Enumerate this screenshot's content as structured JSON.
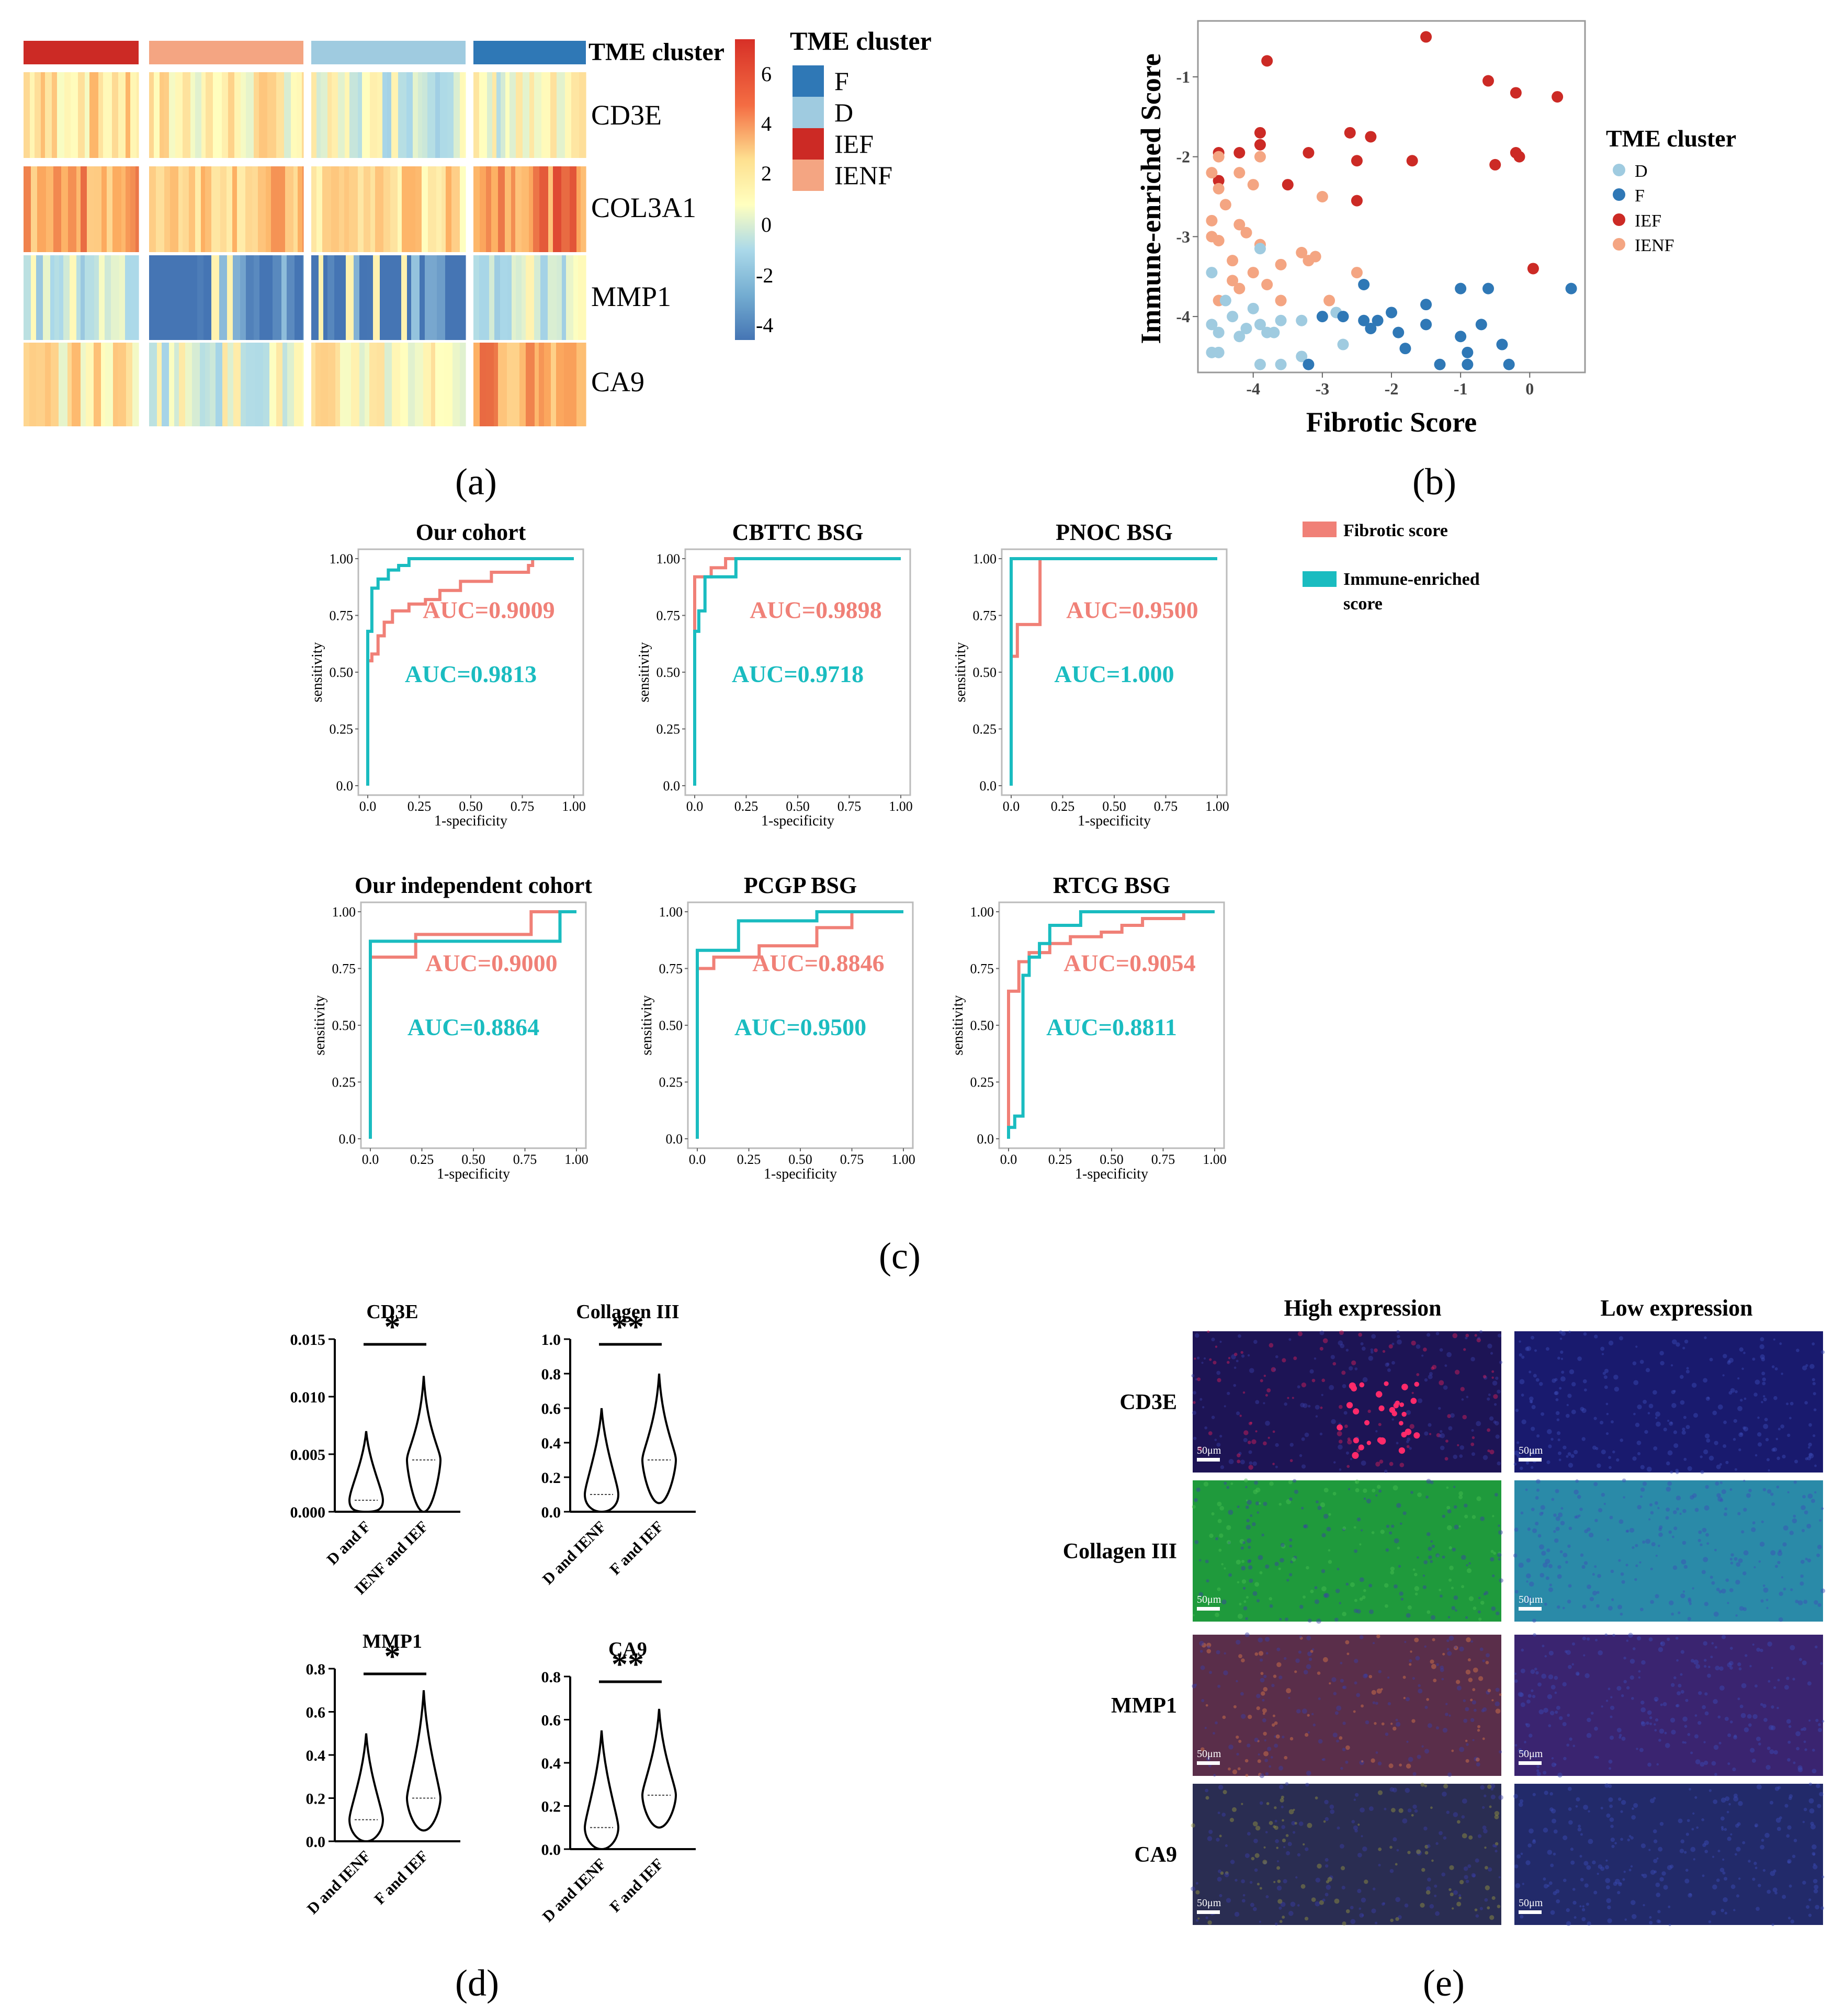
{
  "panel_labels": {
    "a": "(a)",
    "b": "(b)",
    "c": "(c)",
    "d": "(d)",
    "e": "(e)"
  },
  "colors": {
    "F": "#2f78b6",
    "D": "#9fcbe0",
    "IEF": "#cc2a25",
    "IENF": "#f4a582",
    "fibrotic": "#f08077",
    "immune": "#1abcc0",
    "heat_neg": "#4575b4",
    "heat_mid": "#ffffbf",
    "heat_pos": "#d73027"
  },
  "heatmap": {
    "annotation_title": "TME cluster",
    "genes": [
      "CD3E",
      "COL3A1",
      "MMP1",
      "CA9"
    ],
    "groups": [
      "IEF",
      "IENF",
      "D",
      "F"
    ],
    "colorbar_ticks": [
      6,
      4,
      2,
      0,
      -2,
      -4
    ],
    "legend_title": "TME cluster",
    "legend_items": [
      "F",
      "D",
      "IEF",
      "IENF"
    ]
  },
  "chart_data": [
    {
      "id": "scatter-b",
      "type": "scatter",
      "xlabel": "Fibrotic Score",
      "ylabel": "Immune-enriched Score",
      "xlim": [
        -4.8,
        0.8
      ],
      "ylim": [
        -4.7,
        -0.3
      ],
      "xticks": [
        -4,
        -3,
        -2,
        -1,
        0
      ],
      "yticks": [
        -1,
        -2,
        -3,
        -4
      ],
      "legend_title": "TME cluster",
      "legend": [
        "D",
        "F",
        "IEF",
        "IENF"
      ],
      "series": [
        {
          "name": "IEF",
          "points": [
            [
              -1.5,
              -0.5
            ],
            [
              -3.8,
              -0.8
            ],
            [
              -0.6,
              -1.05
            ],
            [
              -0.2,
              -1.2
            ],
            [
              0.4,
              -1.25
            ],
            [
              -3.9,
              -1.7
            ],
            [
              -2.6,
              -1.7
            ],
            [
              -2.3,
              -1.75
            ],
            [
              -3.9,
              -1.85
            ],
            [
              -4.5,
              -1.95
            ],
            [
              -4.2,
              -1.95
            ],
            [
              -3.2,
              -1.95
            ],
            [
              -0.2,
              -1.95
            ],
            [
              -0.15,
              -2.0
            ],
            [
              -2.5,
              -2.05
            ],
            [
              -1.7,
              -2.05
            ],
            [
              -0.5,
              -2.1
            ],
            [
              -3.5,
              -2.35
            ],
            [
              -4.5,
              -2.3
            ],
            [
              -2.5,
              -2.55
            ],
            [
              0.05,
              -3.4
            ]
          ]
        },
        {
          "name": "IENF",
          "points": [
            [
              -4.5,
              -2.0
            ],
            [
              -4.6,
              -2.2
            ],
            [
              -4.2,
              -2.2
            ],
            [
              -4.5,
              -2.4
            ],
            [
              -3.9,
              -2.0
            ],
            [
              -4.0,
              -2.35
            ],
            [
              -3.0,
              -2.5
            ],
            [
              -4.4,
              -2.6
            ],
            [
              -4.6,
              -2.8
            ],
            [
              -4.2,
              -2.85
            ],
            [
              -4.1,
              -2.95
            ],
            [
              -4.6,
              -3.0
            ],
            [
              -4.5,
              -3.05
            ],
            [
              -3.9,
              -3.1
            ],
            [
              -3.3,
              -3.2
            ],
            [
              -3.1,
              -3.25
            ],
            [
              -3.2,
              -3.3
            ],
            [
              -3.6,
              -3.35
            ],
            [
              -4.3,
              -3.3
            ],
            [
              -4.0,
              -3.45
            ],
            [
              -3.8,
              -3.6
            ],
            [
              -2.5,
              -3.45
            ],
            [
              -4.2,
              -3.65
            ],
            [
              -2.9,
              -3.8
            ],
            [
              -4.5,
              -3.8
            ],
            [
              -3.6,
              -3.8
            ],
            [
              -4.3,
              -3.55
            ]
          ]
        },
        {
          "name": "D",
          "points": [
            [
              -3.9,
              -3.15
            ],
            [
              -4.6,
              -3.45
            ],
            [
              -4.4,
              -3.8
            ],
            [
              -4.0,
              -3.9
            ],
            [
              -4.3,
              -4.0
            ],
            [
              -3.9,
              -4.1
            ],
            [
              -3.6,
              -4.05
            ],
            [
              -4.6,
              -4.1
            ],
            [
              -4.1,
              -4.15
            ],
            [
              -4.5,
              -4.2
            ],
            [
              -3.8,
              -4.2
            ],
            [
              -4.2,
              -4.25
            ],
            [
              -3.3,
              -4.05
            ],
            [
              -2.8,
              -3.95
            ],
            [
              -2.7,
              -4.35
            ],
            [
              -4.5,
              -4.45
            ],
            [
              -4.6,
              -4.45
            ],
            [
              -3.3,
              -4.5
            ],
            [
              -3.9,
              -4.6
            ],
            [
              -3.6,
              -4.6
            ],
            [
              -3.7,
              -4.2
            ]
          ]
        },
        {
          "name": "F",
          "points": [
            [
              0.6,
              -3.65
            ],
            [
              -0.6,
              -3.65
            ],
            [
              -1.0,
              -3.65
            ],
            [
              -2.4,
              -3.6
            ],
            [
              -1.5,
              -3.85
            ],
            [
              -2.0,
              -3.95
            ],
            [
              -3.0,
              -4.0
            ],
            [
              -2.7,
              -4.0
            ],
            [
              -2.4,
              -4.05
            ],
            [
              -2.2,
              -4.05
            ],
            [
              -1.5,
              -4.1
            ],
            [
              -0.7,
              -4.1
            ],
            [
              -2.3,
              -4.15
            ],
            [
              -1.9,
              -4.2
            ],
            [
              -1.0,
              -4.25
            ],
            [
              -0.4,
              -4.35
            ],
            [
              -1.8,
              -4.4
            ],
            [
              -0.9,
              -4.45
            ],
            [
              -1.3,
              -4.6
            ],
            [
              -0.9,
              -4.6
            ],
            [
              -0.3,
              -4.6
            ],
            [
              -3.2,
              -4.6
            ]
          ]
        }
      ]
    },
    {
      "id": "roc-our-cohort",
      "type": "line",
      "title": "Our cohort",
      "xlabel": "1-specificity",
      "ylabel": "sensitivity",
      "xlim": [
        0,
        1
      ],
      "ylim": [
        0,
        1
      ],
      "ticks": [
        "0.0",
        "0.25",
        "0.50",
        "0.75",
        "1.00"
      ],
      "series": [
        {
          "name": "Fibrotic score",
          "auc_label": "AUC=0.9009",
          "x": [
            0,
            0,
            0.02,
            0.02,
            0.05,
            0.05,
            0.08,
            0.08,
            0.12,
            0.12,
            0.2,
            0.2,
            0.28,
            0.28,
            0.35,
            0.35,
            0.45,
            0.45,
            0.6,
            0.6,
            0.78,
            0.78,
            0.8,
            0.8,
            1
          ],
          "y": [
            0,
            0.55,
            0.55,
            0.58,
            0.58,
            0.66,
            0.66,
            0.72,
            0.72,
            0.77,
            0.77,
            0.8,
            0.8,
            0.82,
            0.82,
            0.86,
            0.86,
            0.9,
            0.9,
            0.94,
            0.94,
            0.97,
            0.97,
            1,
            1
          ]
        },
        {
          "name": "Immune-enriched score",
          "auc_label": "AUC=0.9813",
          "x": [
            0,
            0,
            0.02,
            0.02,
            0.05,
            0.05,
            0.1,
            0.1,
            0.15,
            0.15,
            0.2,
            0.2,
            1
          ],
          "y": [
            0,
            0.68,
            0.68,
            0.87,
            0.87,
            0.91,
            0.91,
            0.95,
            0.95,
            0.97,
            0.97,
            1,
            1
          ]
        }
      ]
    },
    {
      "id": "roc-cbttc",
      "type": "line",
      "title": "CBTTC  BSG",
      "xlabel": "1-specificity",
      "ylabel": "sensitivity",
      "xlim": [
        0,
        1
      ],
      "ylim": [
        0,
        1
      ],
      "ticks": [
        "0.0",
        "0.25",
        "0.50",
        "0.75",
        "1.00"
      ],
      "series": [
        {
          "name": "Fibrotic score",
          "auc_label": "AUC=0.9898",
          "x": [
            0,
            0,
            0.08,
            0.08,
            0.15,
            0.15,
            1
          ],
          "y": [
            0,
            0.92,
            0.92,
            0.96,
            0.96,
            1,
            1
          ]
        },
        {
          "name": "Immune-enriched score",
          "auc_label": "AUC=0.9718",
          "x": [
            0,
            0,
            0.02,
            0.02,
            0.05,
            0.05,
            0.2,
            0.2,
            1
          ],
          "y": [
            0,
            0.68,
            0.68,
            0.77,
            0.77,
            0.92,
            0.92,
            1,
            1
          ]
        }
      ]
    },
    {
      "id": "roc-pnoc",
      "type": "line",
      "title": "PNOC  BSG",
      "xlabel": "1-specificity",
      "ylabel": "sensitivity",
      "xlim": [
        0,
        1
      ],
      "ylim": [
        0,
        1
      ],
      "ticks": [
        "0.0",
        "0.25",
        "0.50",
        "0.75",
        "1.00"
      ],
      "series": [
        {
          "name": "Fibrotic score",
          "auc_label": "AUC=0.9500",
          "x": [
            0,
            0,
            0.03,
            0.03,
            0.08,
            0.08,
            0.14,
            0.14,
            1
          ],
          "y": [
            0,
            0.57,
            0.57,
            0.71,
            0.71,
            0.71,
            0.71,
            1,
            1
          ]
        },
        {
          "name": "Immune-enriched score",
          "auc_label": "AUC=1.000",
          "x": [
            0,
            0,
            1
          ],
          "y": [
            0,
            1,
            1
          ]
        }
      ]
    },
    {
      "id": "roc-independent",
      "type": "line",
      "title": "Our independent cohort",
      "xlabel": "1-specificity",
      "ylabel": "sensitivity",
      "xlim": [
        0,
        1
      ],
      "ylim": [
        0,
        1
      ],
      "ticks": [
        "0.0",
        "0.25",
        "0.50",
        "0.75",
        "1.00"
      ],
      "series": [
        {
          "name": "Fibrotic score",
          "auc_label": "AUC=0.9000",
          "x": [
            0,
            0,
            0.22,
            0.22,
            0.78,
            0.78,
            0.95,
            0.95,
            1
          ],
          "y": [
            0,
            0.8,
            0.8,
            0.9,
            0.9,
            1,
            1,
            1,
            1
          ]
        },
        {
          "name": "Immune-enriched score",
          "auc_label": "AUC=0.8864",
          "x": [
            0,
            0,
            0.92,
            0.92,
            1
          ],
          "y": [
            0,
            0.87,
            0.87,
            1,
            1
          ]
        }
      ]
    },
    {
      "id": "roc-pcgp",
      "type": "line",
      "title": "PCGP BSG",
      "xlabel": "1-specificity",
      "ylabel": "sensitivity",
      "xlim": [
        0,
        1
      ],
      "ylim": [
        0,
        1
      ],
      "ticks": [
        "0.0",
        "0.25",
        "0.50",
        "0.75",
        "1.00"
      ],
      "series": [
        {
          "name": "Fibrotic score",
          "auc_label": "AUC=0.8846",
          "x": [
            0,
            0,
            0.08,
            0.08,
            0.3,
            0.3,
            0.58,
            0.58,
            0.75,
            0.75,
            1
          ],
          "y": [
            0,
            0.75,
            0.75,
            0.8,
            0.8,
            0.85,
            0.85,
            0.93,
            0.93,
            1,
            1
          ]
        },
        {
          "name": "Immune-enriched score",
          "auc_label": "AUC=0.9500",
          "x": [
            0,
            0,
            0.2,
            0.2,
            0.58,
            0.58,
            1
          ],
          "y": [
            0,
            0.83,
            0.83,
            0.96,
            0.96,
            1,
            1
          ]
        }
      ]
    },
    {
      "id": "roc-rtcg",
      "type": "line",
      "title": "RTCG BSG",
      "xlabel": "1-specificity",
      "ylabel": "sensitivity",
      "xlim": [
        0,
        1
      ],
      "ylim": [
        0,
        1
      ],
      "ticks": [
        "0.0",
        "0.25",
        "0.50",
        "0.75",
        "1.00"
      ],
      "series": [
        {
          "name": "Fibrotic score",
          "auc_label": "AUC=0.9054",
          "x": [
            0,
            0,
            0.05,
            0.05,
            0.1,
            0.1,
            0.2,
            0.2,
            0.3,
            0.3,
            0.45,
            0.45,
            0.55,
            0.55,
            0.65,
            0.65,
            0.85,
            0.85,
            1
          ],
          "y": [
            0,
            0.65,
            0.65,
            0.78,
            0.78,
            0.82,
            0.82,
            0.86,
            0.86,
            0.89,
            0.89,
            0.91,
            0.91,
            0.94,
            0.94,
            0.97,
            0.97,
            1,
            1
          ]
        },
        {
          "name": "Immune-enriched score",
          "auc_label": "AUC=0.8811",
          "x": [
            0,
            0,
            0.03,
            0.03,
            0.07,
            0.07,
            0.1,
            0.1,
            0.15,
            0.15,
            0.2,
            0.2,
            0.35,
            0.35,
            1
          ],
          "y": [
            0,
            0.05,
            0.05,
            0.1,
            0.1,
            0.72,
            0.72,
            0.8,
            0.8,
            0.86,
            0.86,
            0.94,
            0.94,
            1,
            1
          ]
        }
      ]
    },
    {
      "id": "violin-cd3e",
      "type": "violin",
      "title": "CD3E",
      "significance": "*",
      "ylim": [
        0,
        0.015
      ],
      "yticks": [
        "0.015",
        "0.010",
        "0.005",
        "0.000"
      ],
      "categories": [
        "D and F",
        "IENF and IEF"
      ],
      "groups": [
        {
          "min": 0.0,
          "max": 0.007,
          "median": 0.001
        },
        {
          "min": 0.0,
          "max": 0.0118,
          "median": 0.0045
        }
      ]
    },
    {
      "id": "violin-collagen",
      "type": "violin",
      "title": "Collagen III",
      "significance": "**",
      "ylim": [
        0,
        1.0
      ],
      "yticks": [
        "1.0",
        "0.8",
        "0.6",
        "0.4",
        "0.2",
        "0.0"
      ],
      "categories": [
        "D and IENF",
        "F and IEF"
      ],
      "groups": [
        {
          "min": 0.0,
          "max": 0.6,
          "median": 0.1
        },
        {
          "min": 0.05,
          "max": 0.8,
          "median": 0.3
        }
      ]
    },
    {
      "id": "violin-mmp1",
      "type": "violin",
      "title": "MMP1",
      "significance": "*",
      "ylim": [
        0,
        0.8
      ],
      "yticks": [
        "0.8",
        "0.6",
        "0.4",
        "0.2",
        "0.0"
      ],
      "categories": [
        "D and IENF",
        "F and IEF"
      ],
      "groups": [
        {
          "min": 0.0,
          "max": 0.5,
          "median": 0.1
        },
        {
          "min": 0.05,
          "max": 0.7,
          "median": 0.2
        }
      ]
    },
    {
      "id": "violin-ca9",
      "type": "violin",
      "title": "CA9",
      "significance": "**",
      "ylim": [
        0,
        0.8
      ],
      "yticks": [
        "0.8",
        "0.6",
        "0.4",
        "0.2",
        "0.0"
      ],
      "categories": [
        "D and IENF",
        "F and IEF"
      ],
      "groups": [
        {
          "min": 0.0,
          "max": 0.55,
          "median": 0.1
        },
        {
          "min": 0.1,
          "max": 0.65,
          "median": 0.25
        }
      ]
    }
  ],
  "roc_legend": [
    {
      "label": "Fibrotic score",
      "color": "#f08077"
    },
    {
      "label": "Immune-enriched",
      "label2": "score",
      "color": "#1abcc0"
    }
  ],
  "panel_e": {
    "col_headers": [
      "High expression",
      "Low expression"
    ],
    "rows": [
      {
        "label": "CD3E",
        "scale": "50μm",
        "high": "#1d1455",
        "high_spot": "#e0205a",
        "low": "#191a6e"
      },
      {
        "label": "Collagen III",
        "scale": "50μm",
        "high": "#1f9a3c",
        "high_spot": "#46c04f",
        "low": "#2a8aa8"
      },
      {
        "label": "MMP1",
        "scale": "50μm",
        "high": "#5a2e4a",
        "high_spot": "#e07a4a",
        "low": "#3a2470"
      },
      {
        "label": "CA9",
        "scale": "50μm",
        "high": "#2a2d52",
        "high_spot": "#9a9a3e",
        "low": "#222a6a"
      }
    ]
  }
}
